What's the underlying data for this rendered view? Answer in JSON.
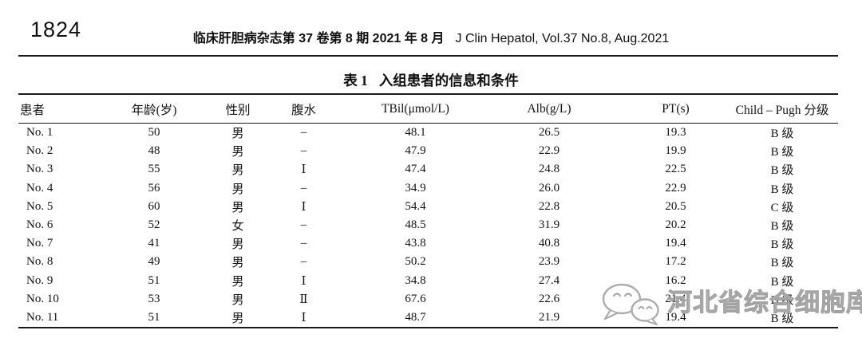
{
  "page": {
    "page_number": "1824",
    "journal_header_cn": "临床肝胆病杂志第 37 卷第 8 期 2021 年 8 月",
    "journal_header_en": "J Clin Hepatol, Vol.37 No.8, Aug.2021"
  },
  "table": {
    "title_label": "表 1",
    "title_text": "入组患者的信息和条件",
    "columns": [
      "患者",
      "年龄(岁)",
      "性别",
      "腹水",
      "TBil(μmol/L)",
      "Alb(g/L)",
      "PT(s)",
      "Child – Pugh 分级"
    ],
    "rows": [
      [
        "No. 1",
        "50",
        "男",
        "–",
        "48.1",
        "26.5",
        "19.3",
        "B 级"
      ],
      [
        "No. 2",
        "48",
        "男",
        "–",
        "47.9",
        "22.9",
        "19.9",
        "B 级"
      ],
      [
        "No. 3",
        "55",
        "男",
        "Ⅰ",
        "47.4",
        "24.8",
        "22.5",
        "B 级"
      ],
      [
        "No. 4",
        "56",
        "男",
        "–",
        "34.9",
        "26.0",
        "22.9",
        "B 级"
      ],
      [
        "No. 5",
        "60",
        "男",
        "Ⅰ",
        "54.4",
        "22.8",
        "20.5",
        "C 级"
      ],
      [
        "No. 6",
        "52",
        "女",
        "–",
        "48.5",
        "31.9",
        "20.2",
        "B 级"
      ],
      [
        "No. 7",
        "41",
        "男",
        "–",
        "43.8",
        "40.8",
        "19.4",
        "B 级"
      ],
      [
        "No. 8",
        "49",
        "男",
        "–",
        "50.2",
        "23.9",
        "17.2",
        "B 级"
      ],
      [
        "No. 9",
        "51",
        "男",
        "Ⅰ",
        "34.8",
        "27.4",
        "16.2",
        "B 级"
      ],
      [
        "No. 10",
        "53",
        "男",
        "Ⅱ",
        "67.6",
        "22.6",
        "21.4",
        "B 级"
      ],
      [
        "No. 11",
        "51",
        "男",
        "Ⅰ",
        "48.7",
        "21.9",
        "19.4",
        "B 级"
      ]
    ]
  },
  "watermark": {
    "icon": "wechat-icon",
    "text": "河北省综合细胞库",
    "color": "#c4c4c4"
  }
}
